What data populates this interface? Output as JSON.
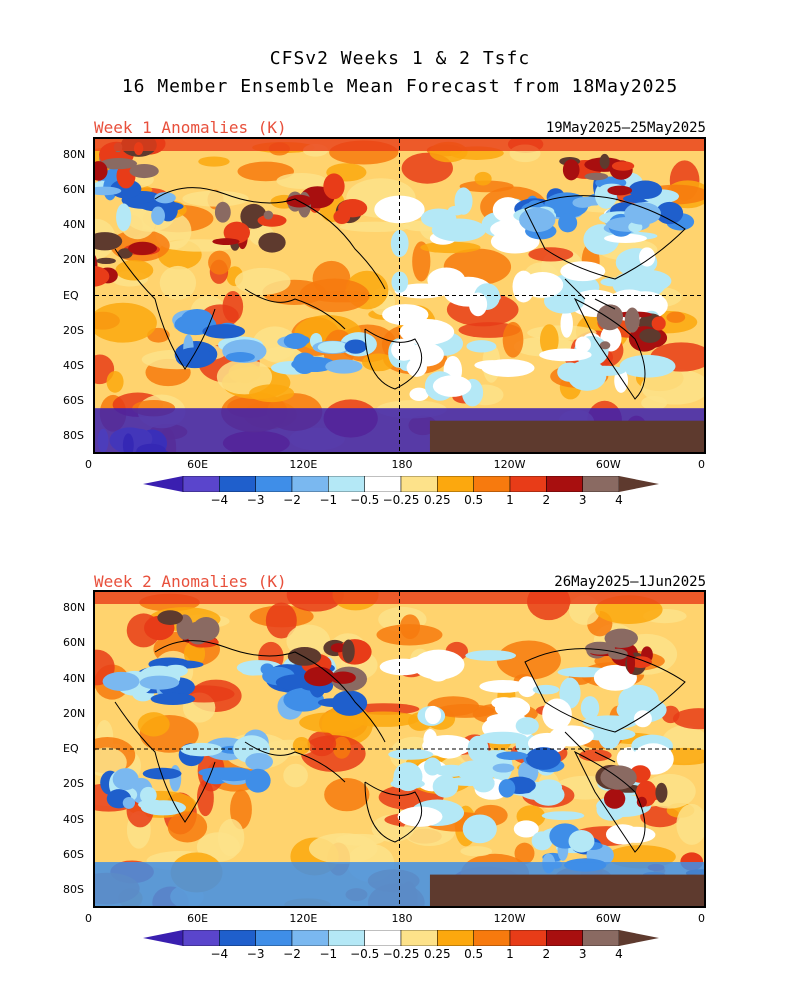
{
  "title_line1": "CFSv2 Weeks 1 & 2 Tsfc",
  "title_line2": "16 Member Ensemble Mean Forecast from 18May2025",
  "panels": [
    {
      "label": "Week 1 Anomalies (K)",
      "dates": "19May2025–25May2025",
      "lat_ticks": [
        "80N",
        "60N",
        "40N",
        "20N",
        "EQ",
        "20S",
        "40S",
        "60S",
        "80S"
      ],
      "lon_ticks": [
        "0",
        "60E",
        "120E",
        "180",
        "120W",
        "60W",
        "0"
      ]
    },
    {
      "label": "Week 2 Anomalies (K)",
      "dates": "26May2025–1Jun2025",
      "lat_ticks": [
        "80N",
        "60N",
        "40N",
        "20N",
        "EQ",
        "20S",
        "40S",
        "60S",
        "80S"
      ],
      "lon_ticks": [
        "0",
        "60E",
        "120E",
        "180",
        "120W",
        "60W",
        "0"
      ]
    }
  ],
  "colorbar": {
    "labels": [
      "−4",
      "−3",
      "−2",
      "−1",
      "−0.5",
      "−0.25",
      "0.25",
      "0.5",
      "1",
      "2",
      "3",
      "4"
    ],
    "colors": [
      "#3a1fb0",
      "#5a45cc",
      "#1f5fcc",
      "#3f8ee8",
      "#7ab8f0",
      "#b4e8f6",
      "#ffffff",
      "#fde28a",
      "#fca80e",
      "#f77a0e",
      "#e83c18",
      "#a80f0f",
      "#8a6a62",
      "#5e3a2e"
    ]
  }
}
